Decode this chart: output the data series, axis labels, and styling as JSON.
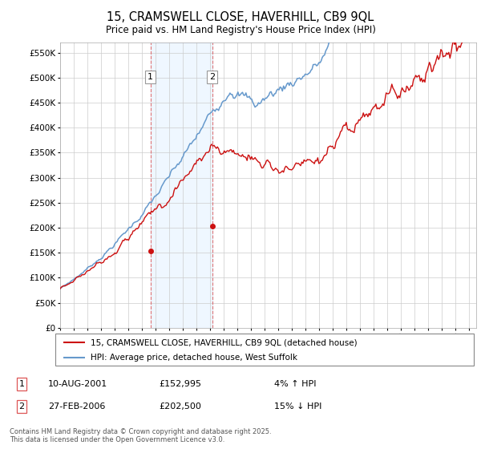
{
  "title": "15, CRAMSWELL CLOSE, HAVERHILL, CB9 9QL",
  "subtitle": "Price paid vs. HM Land Registry's House Price Index (HPI)",
  "legend_line1": "15, CRAMSWELL CLOSE, HAVERHILL, CB9 9QL (detached house)",
  "legend_line2": "HPI: Average price, detached house, West Suffolk",
  "sale1_date": "10-AUG-2001",
  "sale1_price": "£152,995",
  "sale1_hpi": "4% ↑ HPI",
  "sale2_date": "27-FEB-2006",
  "sale2_price": "£202,500",
  "sale2_hpi": "15% ↓ HPI",
  "ylim": [
    0,
    570000
  ],
  "yticks": [
    0,
    50000,
    100000,
    150000,
    200000,
    250000,
    300000,
    350000,
    400000,
    450000,
    500000,
    550000
  ],
  "hpi_color": "#6699cc",
  "price_color": "#cc1111",
  "sale1_year": 2001.62,
  "sale2_year": 2006.15,
  "vline_color": "#dd5555",
  "shade_color": "#ddeeff",
  "shade_alpha": 0.45,
  "footnote": "Contains HM Land Registry data © Crown copyright and database right 2025.\nThis data is licensed under the Open Government Licence v3.0."
}
